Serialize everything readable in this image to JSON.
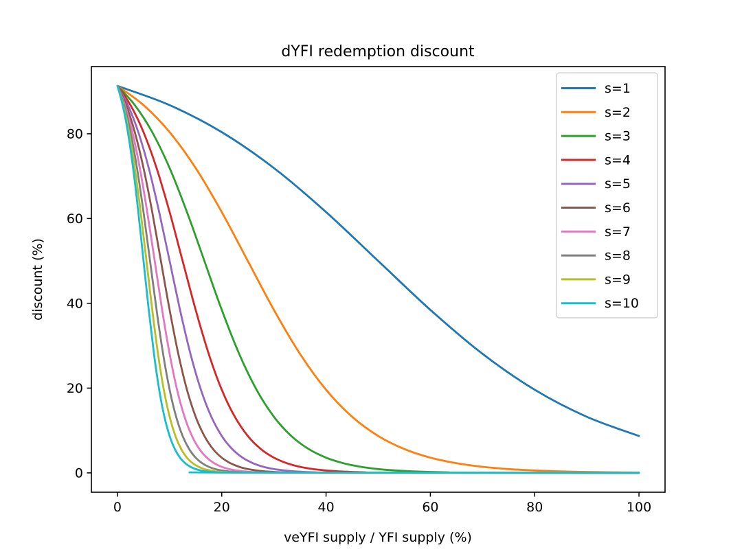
{
  "figure": {
    "background": "#ffffff"
  },
  "chart_data": {
    "type": "line",
    "title": "dYFI redemption discount",
    "xlabel": "veYFI supply / YFI supply (%)",
    "ylabel": "discount (%)",
    "xlim": [
      -5.0,
      105.0
    ],
    "ylim": [
      -4.56,
      95.85
    ],
    "xticks": [
      0,
      20,
      40,
      60,
      80,
      100
    ],
    "yticks": [
      0,
      20,
      40,
      60,
      80
    ],
    "grid": false,
    "axis_color": "#000000",
    "line_width": 2.8,
    "legend": {
      "position": "upper right",
      "border_color": "#cccccc",
      "background": "#ffffff"
    },
    "series": [
      {
        "name": "s=1",
        "color": "#1f77b4",
        "x": [
          0,
          10,
          20,
          30,
          40,
          50,
          60,
          70,
          80,
          90,
          100
        ],
        "y": [
          91.29,
          86.76,
          80.38,
          71.91,
          61.54,
          50.0,
          38.46,
          28.09,
          19.62,
          13.24,
          8.71
        ]
      },
      {
        "name": "s=2",
        "color": "#ff7f0e",
        "x": [
          0,
          5,
          10,
          15,
          20,
          25,
          30,
          35,
          40,
          45,
          50,
          55,
          60,
          65,
          70,
          75,
          80,
          85,
          90,
          95,
          100
        ],
        "y": [
          91.29,
          86.76,
          80.38,
          71.91,
          61.54,
          50.0,
          38.46,
          28.09,
          19.62,
          13.24,
          8.71,
          5.62,
          3.59,
          2.28,
          1.43,
          0.9,
          0.57,
          0.35,
          0.22,
          0.14,
          0.09
        ]
      },
      {
        "name": "s=3",
        "color": "#2ca02c",
        "x": [
          0,
          3.33,
          6.67,
          10,
          13.33,
          16.67,
          20,
          23.33,
          26.67,
          30,
          33.33,
          36.67,
          40,
          43.33,
          46.67,
          50,
          53.33,
          56.67,
          60,
          63.33,
          66.67,
          100
        ],
        "y": [
          91.29,
          86.76,
          80.38,
          71.91,
          61.54,
          50.0,
          38.46,
          28.09,
          19.62,
          13.24,
          8.71,
          5.62,
          3.59,
          2.28,
          1.43,
          0.9,
          0.57,
          0.35,
          0.22,
          0.14,
          0.09,
          0.0
        ]
      },
      {
        "name": "s=4",
        "color": "#d62728",
        "x": [
          0,
          2.5,
          5,
          7.5,
          10,
          12.5,
          15,
          17.5,
          20,
          22.5,
          25,
          27.5,
          30,
          32.5,
          35,
          37.5,
          40,
          42.5,
          45,
          47.5,
          50,
          100
        ],
        "y": [
          91.29,
          86.76,
          80.38,
          71.91,
          61.54,
          50.0,
          38.46,
          28.09,
          19.62,
          13.24,
          8.71,
          5.62,
          3.59,
          2.28,
          1.43,
          0.9,
          0.57,
          0.35,
          0.22,
          0.14,
          0.09,
          0.0
        ]
      },
      {
        "name": "s=5",
        "color": "#9467bd",
        "x": [
          0,
          2,
          4,
          6,
          8,
          10,
          12,
          14,
          16,
          18,
          20,
          22,
          24,
          26,
          28,
          30,
          32,
          34,
          36,
          38,
          40,
          100
        ],
        "y": [
          91.29,
          86.76,
          80.38,
          71.91,
          61.54,
          50.0,
          38.46,
          28.09,
          19.62,
          13.24,
          8.71,
          5.62,
          3.59,
          2.28,
          1.43,
          0.9,
          0.57,
          0.35,
          0.22,
          0.14,
          0.09,
          0.0
        ]
      },
      {
        "name": "s=6",
        "color": "#8c564b",
        "x": [
          0,
          1.67,
          3.33,
          5,
          6.67,
          8.33,
          10,
          11.67,
          13.33,
          15,
          16.67,
          18.33,
          20,
          21.67,
          23.33,
          25,
          26.67,
          28.33,
          30,
          31.67,
          33.33,
          100
        ],
        "y": [
          91.29,
          86.76,
          80.38,
          71.91,
          61.54,
          50.0,
          38.46,
          28.09,
          19.62,
          13.24,
          8.71,
          5.62,
          3.59,
          2.28,
          1.43,
          0.9,
          0.57,
          0.35,
          0.22,
          0.14,
          0.09,
          0.0
        ]
      },
      {
        "name": "s=7",
        "color": "#e377c2",
        "x": [
          0,
          1.43,
          2.86,
          4.29,
          5.71,
          7.14,
          8.57,
          10,
          11.43,
          12.86,
          14.29,
          15.71,
          17.14,
          18.57,
          20,
          21.43,
          22.86,
          24.29,
          25.71,
          27.14,
          28.57,
          100
        ],
        "y": [
          91.29,
          86.76,
          80.38,
          71.91,
          61.54,
          50.0,
          38.46,
          28.09,
          19.62,
          13.24,
          8.71,
          5.62,
          3.59,
          2.28,
          1.43,
          0.9,
          0.57,
          0.35,
          0.22,
          0.14,
          0.09,
          0.0
        ]
      },
      {
        "name": "s=8",
        "color": "#7f7f7f",
        "x": [
          0,
          1.25,
          2.5,
          3.75,
          5,
          6.25,
          7.5,
          8.75,
          10,
          11.25,
          12.5,
          13.75,
          15,
          16.25,
          17.5,
          18.75,
          20,
          21.25,
          22.5,
          23.75,
          25,
          100
        ],
        "y": [
          91.29,
          86.76,
          80.38,
          71.91,
          61.54,
          50.0,
          38.46,
          28.09,
          19.62,
          13.24,
          8.71,
          5.62,
          3.59,
          2.28,
          1.43,
          0.9,
          0.57,
          0.35,
          0.22,
          0.14,
          0.09,
          0.0
        ]
      },
      {
        "name": "s=9",
        "color": "#bcbd22",
        "x": [
          0,
          1.11,
          2.22,
          3.33,
          4.44,
          5.56,
          6.67,
          7.78,
          8.89,
          10,
          11.11,
          12.22,
          13.33,
          14.44,
          15.56,
          16.67,
          17.78,
          18.89,
          20,
          21.11,
          22.22,
          100
        ],
        "y": [
          91.29,
          86.76,
          80.38,
          71.91,
          61.54,
          50.0,
          38.46,
          28.09,
          19.62,
          13.24,
          8.71,
          5.62,
          3.59,
          2.28,
          1.43,
          0.9,
          0.57,
          0.35,
          0.22,
          0.14,
          0.09,
          0.0
        ]
      },
      {
        "name": "s=10",
        "color": "#17becf",
        "x": [
          0,
          1,
          2,
          3,
          4,
          5,
          6,
          7,
          8,
          9,
          10,
          11,
          12,
          13,
          14,
          15,
          16,
          17,
          18,
          19,
          20,
          100
        ],
        "y": [
          91.29,
          86.76,
          80.38,
          71.91,
          61.54,
          50.0,
          38.46,
          28.09,
          19.62,
          13.24,
          8.71,
          5.62,
          3.59,
          2.28,
          1.43,
          0.9,
          0.57,
          0.35,
          0.22,
          0.14,
          0.09,
          0.0
        ]
      }
    ]
  }
}
